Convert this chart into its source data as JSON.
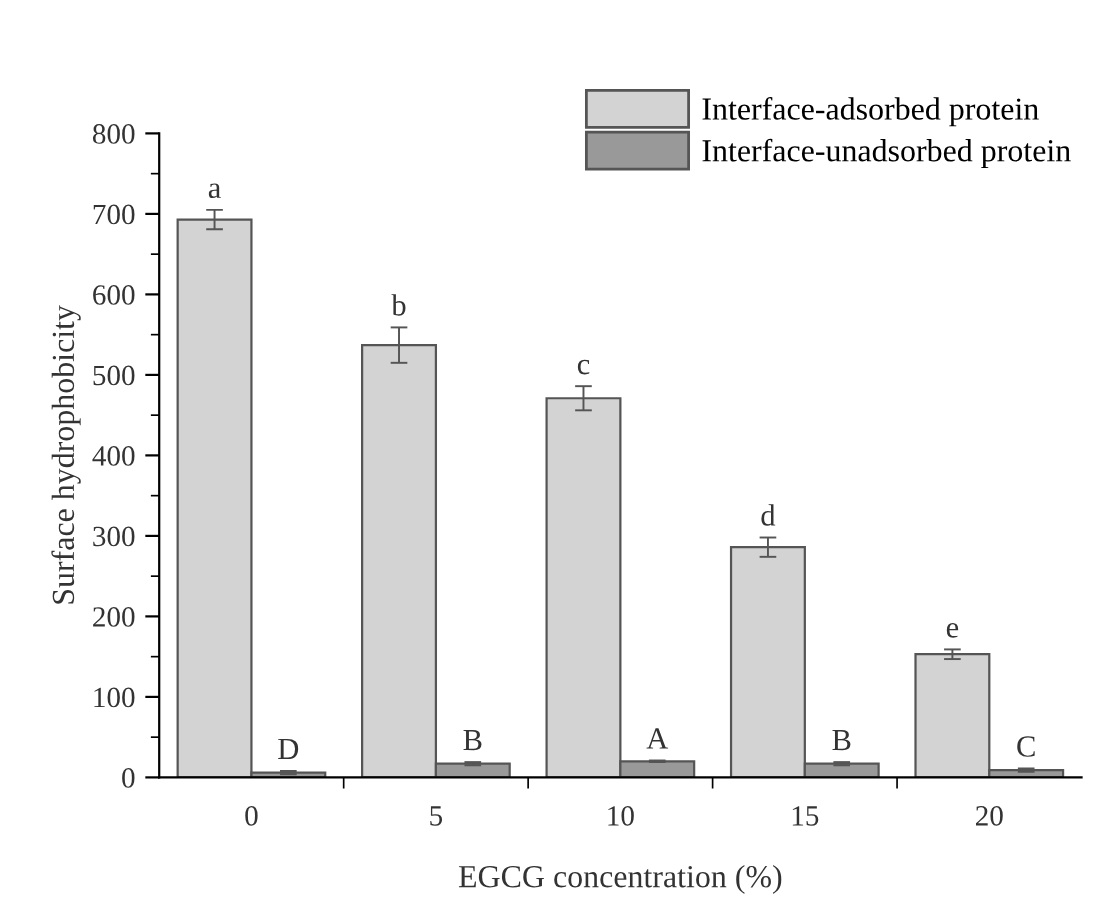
{
  "chart_data": {
    "type": "bar",
    "xlabel": "EGCG concentration (%)",
    "ylabel": "Surface hydrophobicity",
    "categories": [
      "0",
      "5",
      "10",
      "15",
      "20"
    ],
    "series": [
      {
        "name": "Interface-adsorbed protein",
        "color": "#d3d3d3",
        "values": [
          693,
          537,
          471,
          286,
          153
        ],
        "errors": [
          12,
          22,
          15,
          12,
          6
        ]
      },
      {
        "name": "Interface-unadsorbed protein",
        "color": "#999999",
        "values": [
          6,
          17,
          20,
          17,
          9
        ],
        "errors": [
          2,
          2,
          1,
          2,
          2
        ]
      }
    ],
    "ylim": [
      0,
      800
    ],
    "yticks": [
      0,
      100,
      200,
      300,
      400,
      500,
      600,
      700,
      800
    ],
    "grid": false,
    "legend": "top right",
    "annotations": [
      {
        "text": "a",
        "x": "0",
        "y": 693
      },
      {
        "text": "b",
        "x": "5",
        "y": 537
      },
      {
        "text": "c",
        "x": "10",
        "y": 471
      },
      {
        "text": "d",
        "x": "15",
        "y": 286
      },
      {
        "text": "e",
        "x": "20",
        "y": 153
      },
      {
        "text": "D",
        "x": "0",
        "y": 6
      },
      {
        "text": "B",
        "x": "5",
        "y": 17
      },
      {
        "text": "A",
        "x": "10",
        "y": 20
      },
      {
        "text": "B",
        "x": "15",
        "y": 17
      },
      {
        "text": "C",
        "x": "20",
        "y": 9
      }
    ]
  }
}
